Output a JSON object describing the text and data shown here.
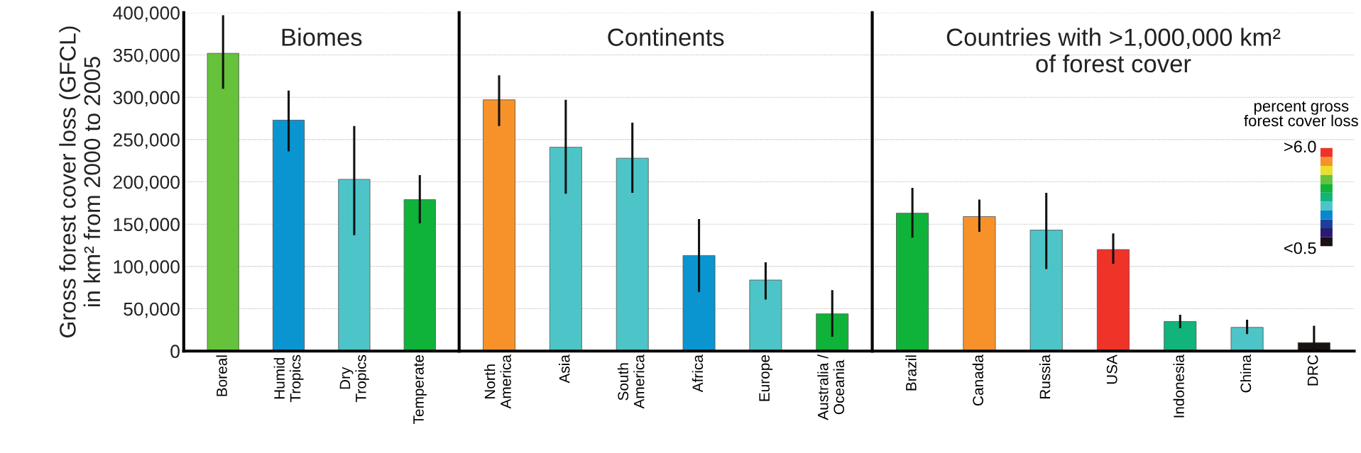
{
  "chart_data": [
    {
      "type": "bar",
      "title": "Biomes",
      "ylabel": "Gross forest cover loss (GFCL)\nin km² from 2000 to 2005",
      "categories": [
        "Boreal",
        "Humid\nTropics",
        "Dry\nTropics",
        "Temperate"
      ],
      "values": [
        352000,
        273000,
        203000,
        179000
      ],
      "colors": [
        "#66c23a",
        "#0a95d0",
        "#4dc5c8",
        "#10b33a"
      ],
      "errors": [
        [
          310000,
          397000
        ],
        [
          236000,
          308000
        ],
        [
          137000,
          266000
        ],
        [
          151000,
          208000
        ]
      ],
      "ylim": [
        0,
        400000
      ],
      "yticks": [
        0,
        {
          "value": 50000,
          "label": "50,000"
        },
        {
          "value": 100000,
          "label": "100,000"
        },
        {
          "value": 150000,
          "label": "150,000"
        },
        {
          "value": 200000,
          "label": "200,000"
        },
        {
          "value": 250000,
          "label": "250,000"
        },
        {
          "value": 300000,
          "label": "300,000"
        },
        {
          "value": 350000,
          "label": "350,000"
        },
        {
          "value": 400000,
          "label": "400,000"
        }
      ],
      "grid": "y"
    },
    {
      "type": "bar",
      "title": "Continents",
      "categories": [
        "North\nAmerica",
        "Asia",
        "South\nAmerica",
        "Africa",
        "Europe",
        "Australia /\nOceania"
      ],
      "values": [
        297000,
        241000,
        228000,
        113000,
        84000,
        44000
      ],
      "colors": [
        "#f7922a",
        "#4dc5c8",
        "#4dc5c8",
        "#0a95d0",
        "#4dc5c8",
        "#10b33a"
      ],
      "errors": [
        [
          266000,
          326000
        ],
        [
          186000,
          297000
        ],
        [
          187000,
          270000
        ],
        [
          70000,
          156000
        ],
        [
          61000,
          105000
        ],
        [
          17000,
          72000
        ]
      ],
      "ylim": [
        0,
        400000
      ],
      "tick_labels": "x",
      "grid": "y"
    },
    {
      "type": "bar",
      "title": "Countries with >1,000,000 km²\nof forest cover",
      "categories": [
        "Brazil",
        "Canada",
        "Russia",
        "USA",
        "Indonesia",
        "China",
        "DRC"
      ],
      "values": [
        163000,
        159000,
        143000,
        120000,
        35000,
        28000,
        10000
      ],
      "colors": [
        "#10b33a",
        "#f7922a",
        "#4dc5c8",
        "#ef3329",
        "#11b47a",
        "#4dc5c8",
        "#1a1111"
      ],
      "errors": [
        [
          134000,
          193000
        ],
        [
          141000,
          179000
        ],
        [
          97000,
          187000
        ],
        [
          103000,
          139000
        ],
        [
          27000,
          43000
        ],
        [
          20000,
          37000
        ],
        [
          0,
          30000
        ]
      ],
      "ylim": [
        0,
        400000
      ],
      "tick_labels": "x",
      "grid": "y",
      "annotations": [
        "percent gross\nforest cover loss",
        ">6.0",
        "<0.5"
      ]
    }
  ]
}
